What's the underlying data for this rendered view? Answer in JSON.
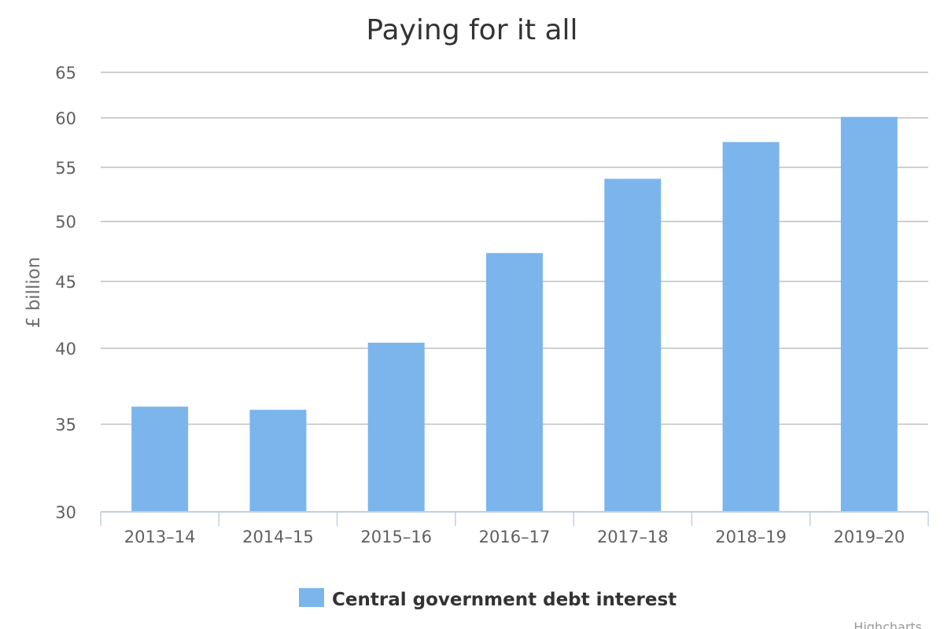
{
  "chart_data": {
    "type": "bar",
    "title": "Paying for it all",
    "xlabel": "",
    "ylabel": "£ billion",
    "y_scale": "log",
    "ylim": [
      30,
      65
    ],
    "yticks": [
      30,
      35,
      40,
      45,
      50,
      55,
      60,
      65
    ],
    "grid": true,
    "legend_position": "bottom-center",
    "categories": [
      "2013–14",
      "2014–15",
      "2015–16",
      "2016–17",
      "2017–18",
      "2018–19",
      "2019–20"
    ],
    "series": [
      {
        "name": "Central government debt interest",
        "color": "#7cb5ec",
        "values": [
          36.1,
          35.9,
          40.4,
          47.3,
          53.9,
          57.5,
          60.1
        ]
      }
    ]
  },
  "credits": "Highcharts"
}
